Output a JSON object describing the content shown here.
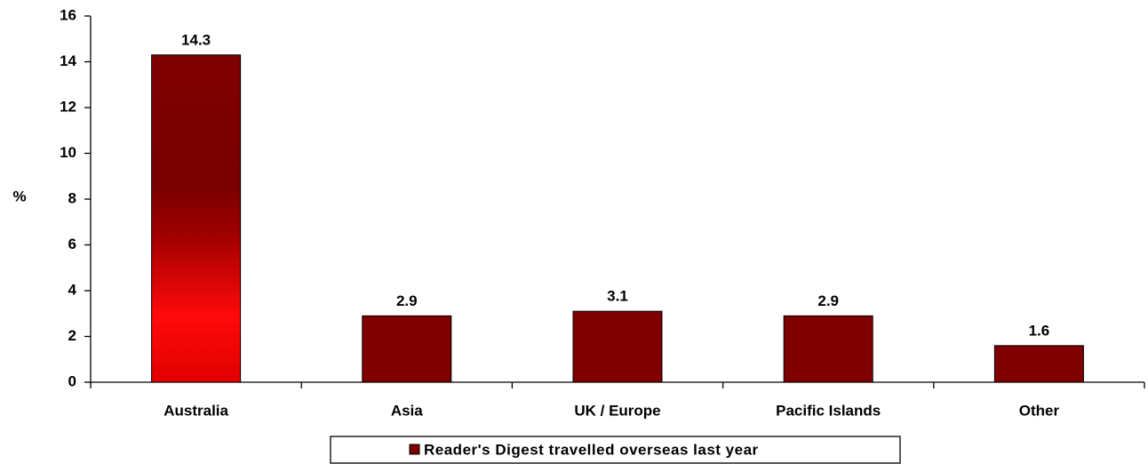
{
  "chart_data": {
    "type": "bar",
    "y_label": "%",
    "categories": [
      "Australia",
      "Asia",
      "UK / Europe",
      "Pacific Islands",
      "Other"
    ],
    "series": [
      {
        "name": "Reader's Digest travelled overseas last year",
        "color": "#7f0000",
        "values": [
          14.3,
          2.9,
          3.1,
          2.9,
          1.6
        ]
      }
    ],
    "ylim": [
      0,
      16
    ],
    "yticks": [
      0,
      2,
      4,
      6,
      8,
      10,
      12,
      14,
      16
    ],
    "legend": "bottom"
  }
}
